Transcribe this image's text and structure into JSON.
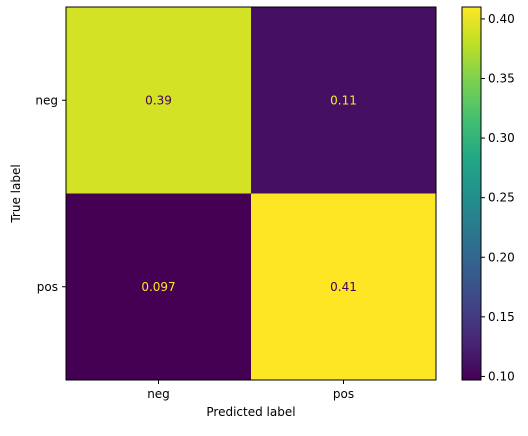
{
  "chart_data": {
    "type": "heatmap",
    "title": "",
    "xlabel": "Predicted label",
    "ylabel": "True label",
    "x_categories": [
      "neg",
      "pos"
    ],
    "y_categories": [
      "neg",
      "pos"
    ],
    "values": [
      [
        0.39,
        0.11
      ],
      [
        0.097,
        0.41
      ]
    ],
    "cell_labels": [
      [
        "0.39",
        "0.11"
      ],
      [
        "0.097",
        "0.41"
      ]
    ],
    "colormap": "viridis",
    "color_range": [
      0.097,
      0.41
    ],
    "colorbar": {
      "ticks": [
        0.1,
        0.15,
        0.2,
        0.25,
        0.3,
        0.35,
        0.4
      ],
      "tick_labels": [
        "0.10",
        "0.15",
        "0.20",
        "0.25",
        "0.30",
        "0.35",
        "0.40"
      ]
    },
    "grid": false,
    "legend": "colorbar-right"
  }
}
